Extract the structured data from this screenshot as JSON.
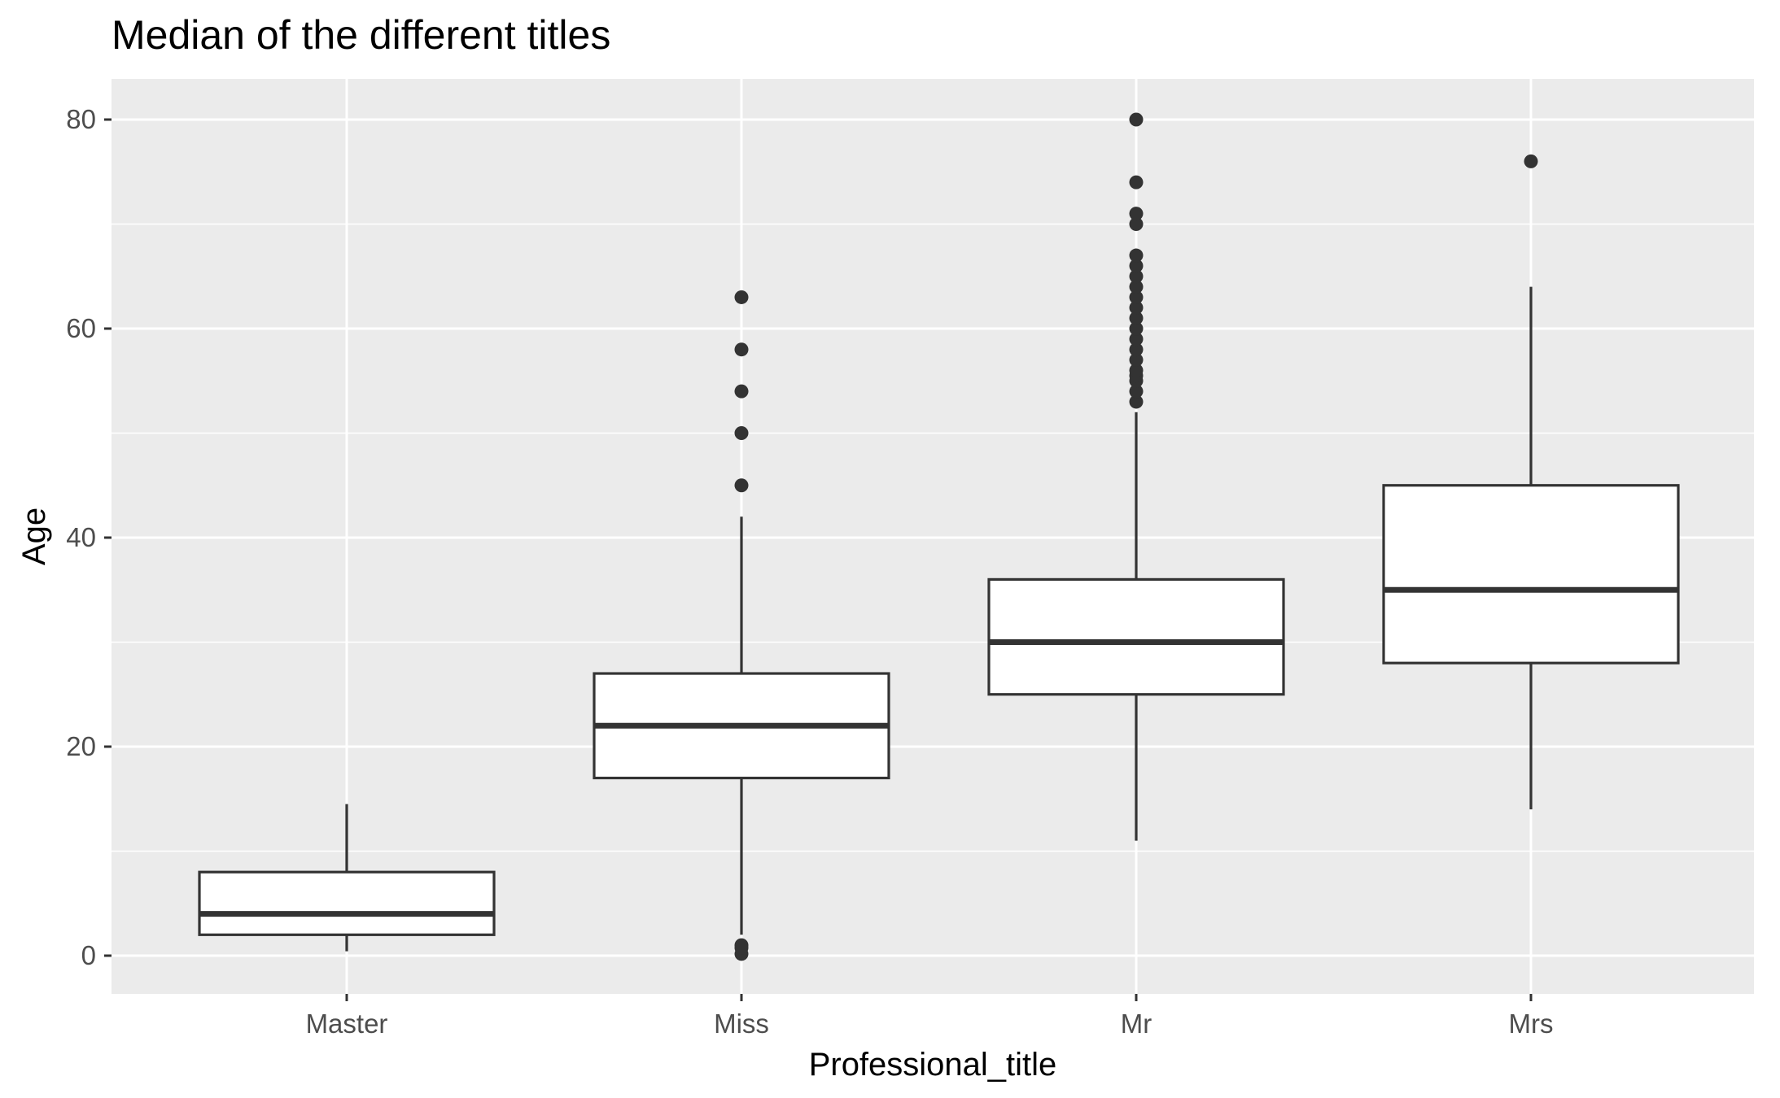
{
  "chart_data": {
    "type": "boxplot",
    "title": "Median of the different titles",
    "xlabel": "Professional_title",
    "ylabel": "Age",
    "categories": [
      "Master",
      "Miss",
      "Mr",
      "Mrs"
    ],
    "ylim": [
      -3.7,
      83.9
    ],
    "yticks": [
      0,
      20,
      40,
      60,
      80
    ],
    "grid": true,
    "boxes": [
      {
        "category": "Master",
        "whisker_low": 0.42,
        "q1": 2,
        "median": 4,
        "q3": 8,
        "whisker_high": 14.5,
        "outliers": []
      },
      {
        "category": "Miss",
        "whisker_low": 2,
        "q1": 17,
        "median": 22,
        "q3": 27,
        "whisker_high": 42,
        "outliers": [
          0.17,
          0.75,
          1,
          45,
          50,
          54,
          58,
          63
        ]
      },
      {
        "category": "Mr",
        "whisker_low": 11,
        "q1": 25,
        "median": 30,
        "q3": 36,
        "whisker_high": 52,
        "outliers": [
          53,
          54,
          55,
          55.5,
          56,
          57,
          58,
          59,
          60,
          61,
          62,
          63,
          64,
          65,
          66,
          67,
          70,
          71,
          74,
          80
        ]
      },
      {
        "category": "Mrs",
        "whisker_low": 14,
        "q1": 28,
        "median": 35,
        "q3": 45,
        "whisker_high": 64,
        "outliers": [
          76
        ]
      }
    ],
    "colors": {
      "panel": "#ebebeb",
      "grid": "#ffffff",
      "box_fill": "#ffffff",
      "box_line": "#333333"
    }
  }
}
